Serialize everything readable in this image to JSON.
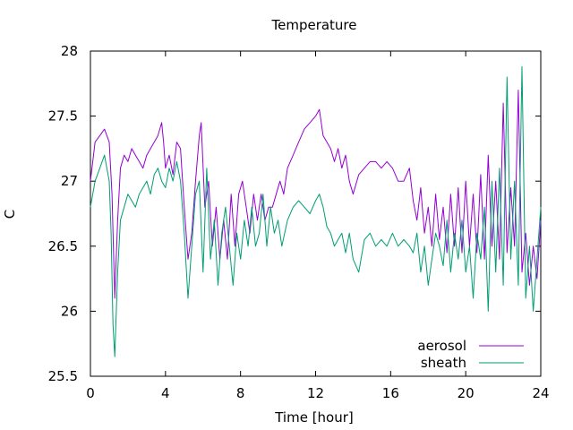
{
  "chart_data": {
    "type": "line",
    "title": "Temperature",
    "xlabel": "Time [hour]",
    "ylabel": "C",
    "xlim": [
      0,
      24
    ],
    "ylim": [
      25.5,
      28
    ],
    "xticks": [
      0,
      4,
      8,
      12,
      16,
      20,
      24
    ],
    "yticks": [
      25.5,
      26,
      26.5,
      27,
      27.5,
      28
    ],
    "xtick_labels": [
      "0",
      "4",
      "8",
      "12",
      "16",
      "20",
      "24"
    ],
    "ytick_labels": [
      "25.5",
      "26",
      "26.5",
      "27",
      "27.5",
      "28"
    ],
    "grid": false,
    "legend_position": "bottom-right",
    "series": [
      {
        "name": "aerosol",
        "color": "#9400d3",
        "x": [
          0,
          0.25,
          0.5,
          0.75,
          1.0,
          1.15,
          1.3,
          1.45,
          1.6,
          1.8,
          2.0,
          2.2,
          2.4,
          2.6,
          2.8,
          3.0,
          3.2,
          3.4,
          3.6,
          3.8,
          3.9,
          4.0,
          4.2,
          4.4,
          4.6,
          4.8,
          5.0,
          5.2,
          5.4,
          5.6,
          5.8,
          5.9,
          6.1,
          6.3,
          6.5,
          6.7,
          6.9,
          7.1,
          7.3,
          7.5,
          7.7,
          7.9,
          8.1,
          8.3,
          8.5,
          8.7,
          8.9,
          9.1,
          9.3,
          9.5,
          9.7,
          9.9,
          10.1,
          10.3,
          10.5,
          10.8,
          11.1,
          11.4,
          11.7,
          12.0,
          12.2,
          12.4,
          12.6,
          12.8,
          13.0,
          13.2,
          13.4,
          13.6,
          13.8,
          14.0,
          14.3,
          14.6,
          14.9,
          15.2,
          15.5,
          15.8,
          16.1,
          16.4,
          16.7,
          17.0,
          17.2,
          17.4,
          17.6,
          17.8,
          18.0,
          18.2,
          18.4,
          18.6,
          18.8,
          19.0,
          19.2,
          19.4,
          19.6,
          19.8,
          20.0,
          20.2,
          20.4,
          20.6,
          20.8,
          21.0,
          21.2,
          21.4,
          21.6,
          21.8,
          22.0,
          22.2,
          22.4,
          22.6,
          22.8,
          23.0,
          23.2,
          23.4,
          23.6,
          23.8,
          24.0
        ],
        "y": [
          27.0,
          27.3,
          27.35,
          27.4,
          27.3,
          26.9,
          26.1,
          26.7,
          27.1,
          27.2,
          27.15,
          27.25,
          27.2,
          27.15,
          27.1,
          27.2,
          27.25,
          27.3,
          27.35,
          27.45,
          27.3,
          27.1,
          27.2,
          27.05,
          27.3,
          27.25,
          26.8,
          26.4,
          26.6,
          27.0,
          27.35,
          27.45,
          26.8,
          27.0,
          26.5,
          26.8,
          26.4,
          26.7,
          26.4,
          26.9,
          26.5,
          26.9,
          27.0,
          26.8,
          26.6,
          26.9,
          26.7,
          26.9,
          26.7,
          26.8,
          26.8,
          26.9,
          27.0,
          26.9,
          27.1,
          27.2,
          27.3,
          27.4,
          27.45,
          27.5,
          27.55,
          27.35,
          27.3,
          27.25,
          27.15,
          27.25,
          27.1,
          27.2,
          27.0,
          26.9,
          27.05,
          27.1,
          27.15,
          27.15,
          27.1,
          27.15,
          27.1,
          27.0,
          27.0,
          27.1,
          26.85,
          26.7,
          26.95,
          26.6,
          26.8,
          26.5,
          26.9,
          26.55,
          26.8,
          26.45,
          26.9,
          26.5,
          26.95,
          26.45,
          27.0,
          26.5,
          26.9,
          26.45,
          27.05,
          26.4,
          27.2,
          26.5,
          27.0,
          26.4,
          27.6,
          26.45,
          26.95,
          26.5,
          27.7,
          26.3,
          26.6,
          26.2,
          26.5,
          26.25,
          26.7
        ]
      },
      {
        "name": "sheath",
        "color": "#009e73",
        "x": [
          0,
          0.25,
          0.5,
          0.75,
          1.0,
          1.1,
          1.2,
          1.3,
          1.45,
          1.6,
          1.8,
          2.0,
          2.2,
          2.4,
          2.6,
          2.8,
          3.0,
          3.2,
          3.4,
          3.6,
          3.8,
          4.0,
          4.2,
          4.4,
          4.6,
          4.8,
          5.0,
          5.2,
          5.4,
          5.6,
          5.8,
          6.0,
          6.2,
          6.4,
          6.6,
          6.8,
          7.0,
          7.2,
          7.4,
          7.6,
          7.8,
          8.0,
          8.2,
          8.4,
          8.6,
          8.8,
          9.0,
          9.2,
          9.4,
          9.6,
          9.8,
          10.0,
          10.2,
          10.5,
          10.8,
          11.1,
          11.4,
          11.7,
          12.0,
          12.2,
          12.4,
          12.6,
          12.8,
          13.0,
          13.2,
          13.4,
          13.6,
          13.8,
          14.0,
          14.3,
          14.6,
          14.9,
          15.2,
          15.5,
          15.8,
          16.1,
          16.4,
          16.7,
          17.0,
          17.2,
          17.4,
          17.6,
          17.8,
          18.0,
          18.2,
          18.4,
          18.6,
          18.8,
          19.0,
          19.2,
          19.4,
          19.6,
          19.8,
          20.0,
          20.2,
          20.4,
          20.6,
          20.8,
          21.0,
          21.2,
          21.4,
          21.6,
          21.8,
          22.0,
          22.2,
          22.4,
          22.6,
          22.8,
          23.0,
          23.2,
          23.4,
          23.6,
          23.8,
          24.0
        ],
        "y": [
          26.8,
          27.0,
          27.1,
          27.2,
          27.0,
          26.6,
          25.9,
          25.65,
          26.3,
          26.7,
          26.8,
          26.9,
          26.85,
          26.8,
          26.9,
          26.95,
          27.0,
          26.9,
          27.05,
          27.1,
          27.0,
          26.95,
          27.1,
          27.0,
          27.15,
          27.0,
          26.6,
          26.1,
          26.5,
          26.9,
          27.0,
          26.3,
          27.1,
          26.4,
          26.7,
          26.2,
          26.6,
          26.8,
          26.5,
          26.2,
          26.6,
          26.4,
          26.7,
          26.5,
          26.8,
          26.5,
          26.6,
          26.9,
          26.5,
          26.8,
          26.6,
          26.7,
          26.5,
          26.7,
          26.8,
          26.85,
          26.8,
          26.75,
          26.85,
          26.9,
          26.8,
          26.65,
          26.6,
          26.5,
          26.55,
          26.6,
          26.45,
          26.6,
          26.4,
          26.3,
          26.55,
          26.6,
          26.5,
          26.55,
          26.5,
          26.6,
          26.5,
          26.55,
          26.5,
          26.45,
          26.6,
          26.3,
          26.5,
          26.2,
          26.4,
          26.6,
          26.5,
          26.35,
          26.7,
          26.3,
          26.6,
          26.4,
          26.7,
          26.3,
          26.5,
          26.1,
          26.6,
          26.4,
          26.8,
          26.0,
          27.0,
          26.3,
          27.1,
          26.2,
          27.8,
          26.4,
          27.0,
          26.2,
          27.88,
          26.1,
          26.5,
          26.0,
          26.4,
          26.8
        ]
      }
    ]
  }
}
